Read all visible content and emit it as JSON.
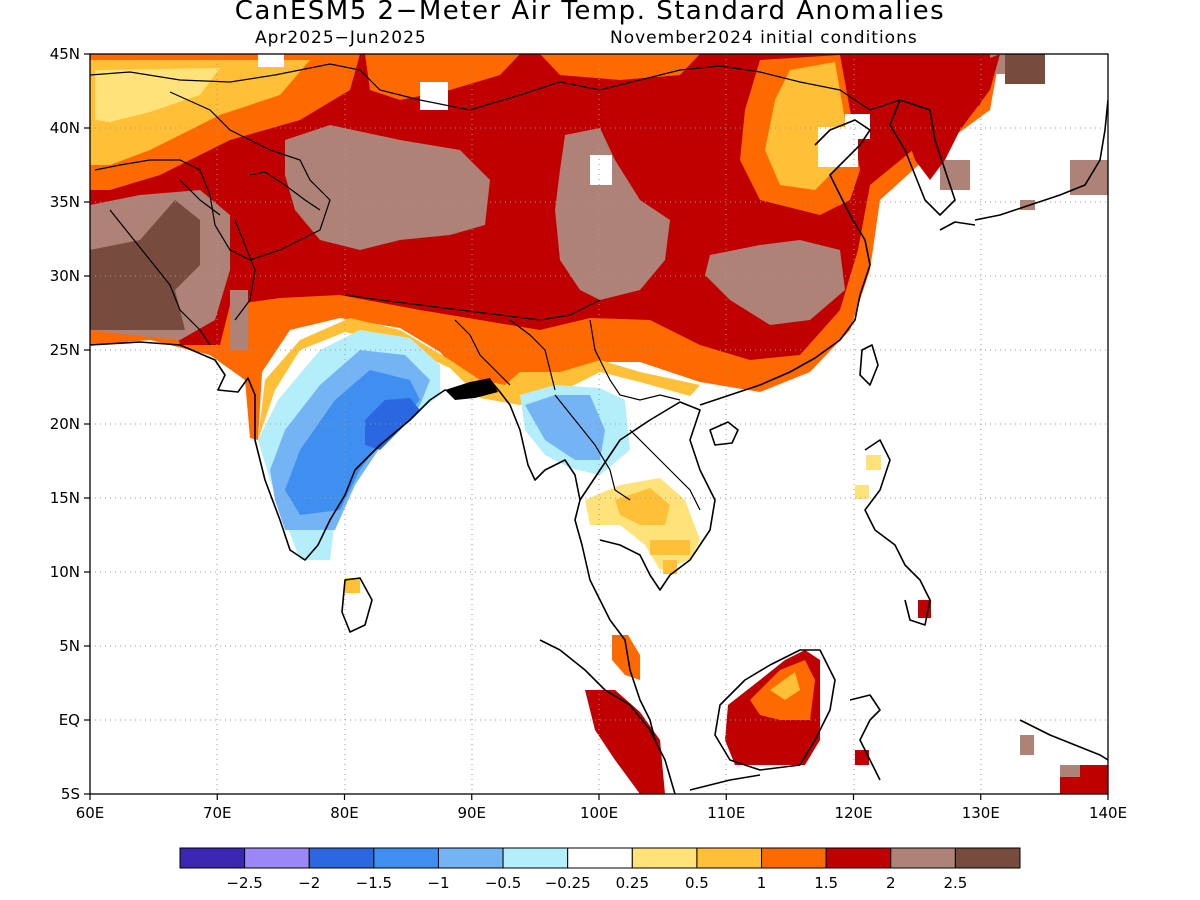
{
  "title": "CanESM5 2−Meter Air Temp. Standard Anomalies",
  "subtitle_left": "Apr2025−Jun2025",
  "subtitle_right": "November2024 initial conditions",
  "axes": {
    "lon_range": [
      60,
      140
    ],
    "lat_range": [
      -5,
      45
    ],
    "x_ticks": [
      "60E",
      "70E",
      "80E",
      "90E",
      "100E",
      "110E",
      "120E",
      "130E",
      "140E"
    ],
    "y_ticks": [
      "45N",
      "40N",
      "35N",
      "30N",
      "25N",
      "20N",
      "15N",
      "10N",
      "5N",
      "EQ",
      "5S"
    ],
    "grid": "dotted"
  },
  "legend": {
    "colors": [
      "#3a26b0",
      "#9b87f5",
      "#2b67e0",
      "#3f8ff0",
      "#74b4f5",
      "#b3eefa",
      "#ffffff",
      "#ffe27a",
      "#ffbf36",
      "#ff6a00",
      "#c00000",
      "#ae8276",
      "#774c3f"
    ],
    "labels": [
      "−2.5",
      "−2",
      "−1.5",
      "−1",
      "−0.5",
      "−0.25",
      "0.25",
      "0.5",
      "1",
      "1.5",
      "2",
      "2.5"
    ]
  },
  "regions": [
    {
      "name": "central-asia-red",
      "level": 2,
      "color": "#c00000"
    },
    {
      "name": "tibet-tan",
      "level": 2.5,
      "color": "#ae8276"
    },
    {
      "name": "iran-brown",
      "level": 3,
      "color": "#774c3f"
    },
    {
      "name": "india-cold",
      "level": -1.5,
      "color": "#2b67e0"
    },
    {
      "name": "myanmar-cold",
      "level": -0.5,
      "color": "#74b4f5"
    },
    {
      "name": "indochina-warm",
      "level": 0.5,
      "color": "#ffe27a"
    },
    {
      "name": "borneo-red",
      "level": 2,
      "color": "#c00000"
    },
    {
      "name": "sumatra-red",
      "level": 2,
      "color": "#c00000"
    }
  ]
}
